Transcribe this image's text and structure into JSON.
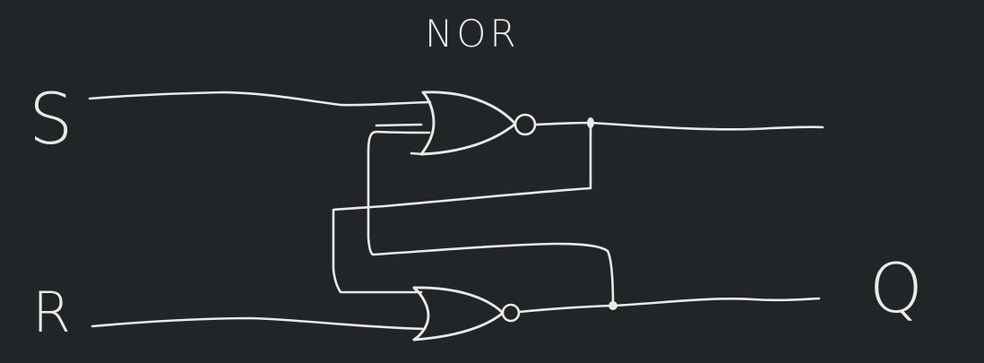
{
  "canvas": {
    "background": "#222527",
    "ink_color": "#e9e9e6"
  },
  "diagram": {
    "title": "NOR",
    "type": "SR latch built from two cross-coupled NOR gates",
    "gates": [
      {
        "id": "nor-top",
        "kind": "NOR",
        "inputs": [
          "S",
          "feedback-from-bottom-output"
        ],
        "output": "top-output"
      },
      {
        "id": "nor-bottom",
        "kind": "NOR",
        "inputs": [
          "feedback-from-top-output",
          "R"
        ],
        "output": "Q"
      }
    ],
    "labels": {
      "input_set": "S",
      "input_reset": "R",
      "output": "Q"
    }
  }
}
